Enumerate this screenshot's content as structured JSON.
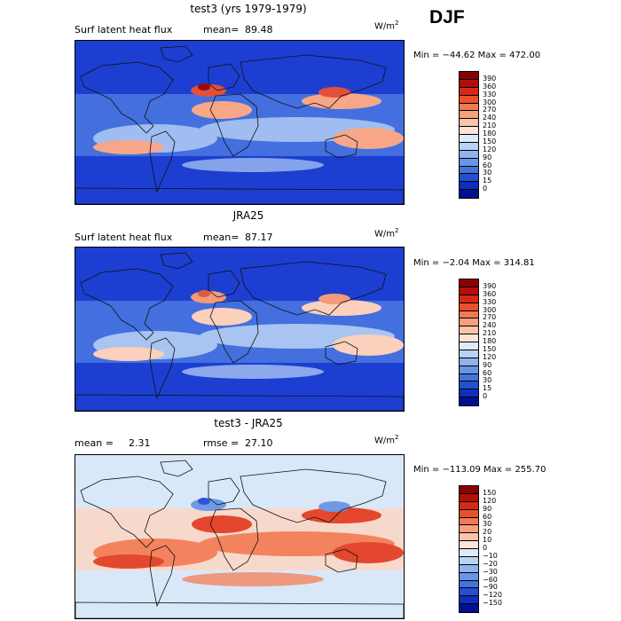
{
  "season": "DJF",
  "panels": [
    {
      "title": "test3 (yrs 1979-1979)",
      "variable": "Surf latent heat flux",
      "stat_label": "mean=",
      "stat_value": "89.48",
      "units": "W/m",
      "units_exp": "2",
      "minmax": "Min = −44.62  Max = 472.00",
      "colorbar": {
        "labels": [
          "390",
          "360",
          "330",
          "300",
          "270",
          "240",
          "210",
          "180",
          "150",
          "120",
          "90",
          "60",
          "30",
          "15",
          "0"
        ],
        "colors": [
          "#8b0000",
          "#b30f0a",
          "#d42a14",
          "#e9502c",
          "#f27a52",
          "#f7a07c",
          "#fbc3a8",
          "#fde4d6",
          "#dcebf9",
          "#b8d2f5",
          "#8eb4ee",
          "#6a94e6",
          "#4573dc",
          "#2450d0",
          "#0d2fc0",
          "#00108f"
        ]
      },
      "map": {
        "base": "#1c3fd1",
        "mid": "#4a78e2",
        "light": "#9fbdf0",
        "warm1": "#f7a788",
        "warm2": "#e2503a",
        "hot": "#9a0b0b"
      }
    },
    {
      "title": "JRA25",
      "variable": "Surf latent heat flux",
      "stat_label": "mean=",
      "stat_value": "87.17",
      "units": "W/m",
      "units_exp": "2",
      "minmax": "Min =  −2.04  Max = 314.81",
      "colorbar": {
        "labels": [
          "390",
          "360",
          "330",
          "300",
          "270",
          "240",
          "210",
          "180",
          "150",
          "120",
          "90",
          "60",
          "30",
          "15",
          "0"
        ],
        "colors": [
          "#8b0000",
          "#b30f0a",
          "#d42a14",
          "#e9502c",
          "#f27a52",
          "#f7a07c",
          "#fbc3a8",
          "#fde4d6",
          "#dcebf9",
          "#b8d2f5",
          "#8eb4ee",
          "#6a94e6",
          "#4573dc",
          "#2450d0",
          "#0d2fc0",
          "#00108f"
        ]
      },
      "map": {
        "base": "#1c3fd1",
        "mid": "#4a78e2",
        "light": "#a8c4f1",
        "warm1": "#fbd0bc",
        "warm2": "#f39a78",
        "hot": "#e25a3c"
      }
    },
    {
      "title": "test3 - JRA25",
      "variable": "",
      "stat_label": "mean =",
      "stat_value": "2.31",
      "rmse_label": "rmse =",
      "rmse_value": "27.10",
      "units": "W/m",
      "units_exp": "2",
      "minmax": "Min = −113.09  Max = 255.70",
      "colorbar": {
        "labels": [
          "150",
          "120",
          "90",
          "60",
          "30",
          "20",
          "10",
          "0",
          "−10",
          "−20",
          "−30",
          "−60",
          "−90",
          "−120",
          "−150"
        ],
        "colors": [
          "#8b0000",
          "#b30f0a",
          "#d42a14",
          "#e9502c",
          "#f27a52",
          "#f7a07c",
          "#fbc3a8",
          "#fde4d6",
          "#dcebf9",
          "#b8d2f5",
          "#8eb4ee",
          "#6a94e6",
          "#4573dc",
          "#2450d0",
          "#0d2fc0",
          "#00108f"
        ]
      },
      "map": {
        "base": "#d9e8f8",
        "mid": "#fbd6c4",
        "light": "#f3835e",
        "warm1": "#e3472e",
        "warm2": "#6f98e7",
        "hot": "#2e55d6"
      }
    }
  ]
}
